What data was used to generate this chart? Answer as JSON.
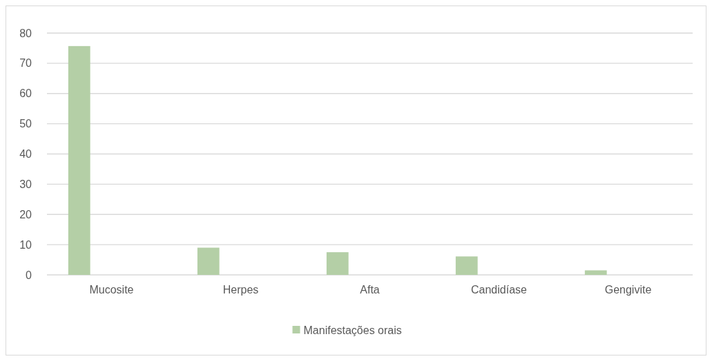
{
  "chart_data": {
    "type": "bar",
    "categories": [
      "Mucosite",
      "Herpes",
      "Afta",
      "Candidíase",
      "Gengivite"
    ],
    "series": [
      {
        "name": "Manifestações orais",
        "color": "#b4cfa6",
        "values": [
          75.7,
          9,
          7.5,
          6.1,
          1.5
        ]
      }
    ],
    "ylim": [
      0,
      80
    ],
    "yticks": [
      0,
      10,
      20,
      30,
      40,
      50,
      60,
      70,
      80
    ],
    "grid": "y",
    "legend": "bottom"
  }
}
